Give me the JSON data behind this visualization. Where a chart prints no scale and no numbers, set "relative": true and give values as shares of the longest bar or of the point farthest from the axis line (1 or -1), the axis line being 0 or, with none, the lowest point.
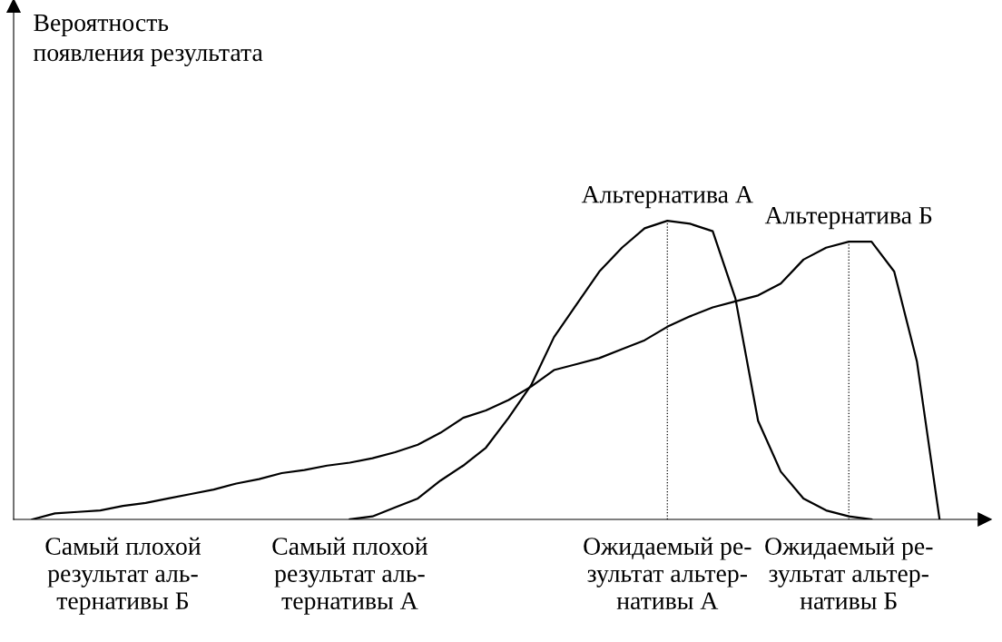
{
  "chart_data": {
    "type": "line",
    "relative": true,
    "annotations": [
      "Вероятность\nпоявления результата"
    ],
    "categories": [
      null,
      null,
      null,
      null,
      "Самый плохой\nрезультат аль-\nтернативы Б",
      null,
      null,
      null,
      null,
      null,
      null,
      null,
      null,
      null,
      "Самый плохой\nрезультат аль-\nтернативы А",
      null,
      null,
      null,
      null,
      null,
      null,
      null,
      null,
      null,
      null,
      null,
      null,
      null,
      "Ожидаемый ре-\nзультат альтер-\nнативы А",
      null,
      null,
      null,
      null,
      null,
      null,
      null,
      "Ожидаемый ре-\nзультат альтер-\nнативы Б",
      null,
      null,
      null,
      null
    ],
    "series": [
      {
        "name": "Альтернатива А",
        "color": "#000000",
        "values": [
          null,
          null,
          null,
          null,
          null,
          null,
          null,
          null,
          null,
          null,
          null,
          null,
          null,
          null,
          0,
          0.01,
          0.04,
          0.07,
          0.13,
          0.18,
          0.24,
          0.34,
          0.45,
          0.61,
          0.72,
          0.83,
          0.91,
          0.975,
          1.0,
          0.99,
          0.965,
          0.74,
          0.33,
          0.16,
          0.07,
          0.03,
          0.01,
          0,
          null,
          null,
          null
        ]
      },
      {
        "name": "Альтернатива Б",
        "color": "#000000",
        "values": [
          0,
          0.02,
          0.025,
          0.03,
          0.045,
          0.055,
          0.07,
          0.085,
          0.1,
          0.12,
          0.135,
          0.155,
          0.165,
          0.18,
          0.19,
          0.205,
          0.225,
          0.25,
          0.29,
          0.34,
          0.365,
          0.4,
          0.445,
          0.5,
          0.52,
          0.54,
          0.57,
          0.6,
          0.645,
          0.68,
          0.71,
          0.73,
          0.75,
          0.79,
          0.87,
          0.91,
          0.93,
          0.93,
          0.83,
          0.53,
          0
        ]
      }
    ],
    "ref_lines": [
      {
        "axis": "x",
        "value": "Ожидаемый ре-\nзультат альтер-\nнативы А",
        "line_style": "dotted",
        "color": "#000000"
      },
      {
        "axis": "x",
        "value": "Ожидаемый ре-\nзультат альтер-\nнативы Б",
        "line_style": "dotted",
        "color": "#000000"
      }
    ],
    "grid": false,
    "legend": false,
    "marker": "none",
    "line_style": "solid"
  }
}
